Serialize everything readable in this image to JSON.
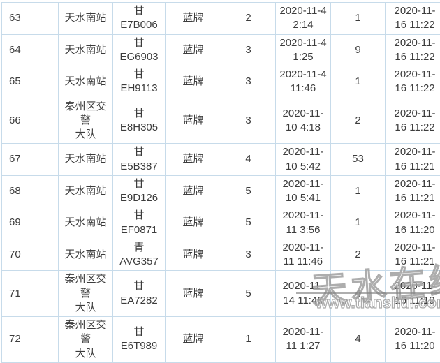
{
  "colors": {
    "border": "#c7dbea",
    "text": "#3c3c3c",
    "background": "#ffffff",
    "watermark_outline": "#919191"
  },
  "table": {
    "rows": [
      {
        "seq": "63",
        "station": "天水南站",
        "plate_prefix": "甘",
        "plate_number": "E7B006",
        "plate_type": "蓝牌",
        "count_a": "2",
        "time_first": "2020-11-4\n2:14",
        "count_b": "1",
        "time_last": "2020-11-\n16 11:22"
      },
      {
        "seq": "64",
        "station": "天水南站",
        "plate_prefix": "甘",
        "plate_number": "EG6903",
        "plate_type": "蓝牌",
        "count_a": "3",
        "time_first": "2020-11-4\n1:25",
        "count_b": "9",
        "time_last": "2020-11-\n16 11:22"
      },
      {
        "seq": "65",
        "station": "天水南站",
        "plate_prefix": "甘",
        "plate_number": "EH9113",
        "plate_type": "蓝牌",
        "count_a": "3",
        "time_first": "2020-11-4\n11:46",
        "count_b": "1",
        "time_last": "2020-11-\n16 11:22"
      },
      {
        "seq": "66",
        "station": "秦州区交警\n大队",
        "plate_prefix": "甘",
        "plate_number": "E8H305",
        "plate_type": "蓝牌",
        "count_a": "3",
        "time_first": "2020-11-\n10 4:18",
        "count_b": "2",
        "time_last": "2020-11-\n16 11:22"
      },
      {
        "seq": "67",
        "station": "天水南站",
        "plate_prefix": "甘",
        "plate_number": "E5B387",
        "plate_type": "蓝牌",
        "count_a": "4",
        "time_first": "2020-11-\n10 5:42",
        "count_b": "53",
        "time_last": "2020-11-\n16 11:21"
      },
      {
        "seq": "68",
        "station": "天水南站",
        "plate_prefix": "甘",
        "plate_number": "E9D126",
        "plate_type": "蓝牌",
        "count_a": "5",
        "time_first": "2020-11-\n10 5:41",
        "count_b": "1",
        "time_last": "2020-11-\n16 11:21"
      },
      {
        "seq": "69",
        "station": "天水南站",
        "plate_prefix": "甘",
        "plate_number": "EF0871",
        "plate_type": "蓝牌",
        "count_a": "5",
        "time_first": "2020-11-\n11 3:56",
        "count_b": "1",
        "time_last": "2020-11-\n16 11:20"
      },
      {
        "seq": "70",
        "station": "天水南站",
        "plate_prefix": "青",
        "plate_number": "AVG357",
        "plate_type": "蓝牌",
        "count_a": "3",
        "time_first": "2020-11-\n11 11:46",
        "count_b": "2",
        "time_last": "2020-11-\n16 11:21"
      },
      {
        "seq": "71",
        "station": "秦州区交警\n大队",
        "plate_prefix": "甘",
        "plate_number": "EA7282",
        "plate_type": "蓝牌",
        "count_a": "5",
        "time_first": "2020-11-\n14 11:46",
        "count_b": "4",
        "time_last": "2020-11-\n16 11:19"
      },
      {
        "seq": "72",
        "station": "秦州区交警\n大队",
        "plate_prefix": "甘",
        "plate_number": "E6T989",
        "plate_type": "蓝牌",
        "count_a": "1",
        "time_first": "2020-11-\n11 1:27",
        "count_b": "4",
        "time_last": "2020-11-\n16 11:20"
      }
    ]
  },
  "watermark": {
    "text": "天水在线",
    "url": "www.tianshui.com.cn"
  }
}
